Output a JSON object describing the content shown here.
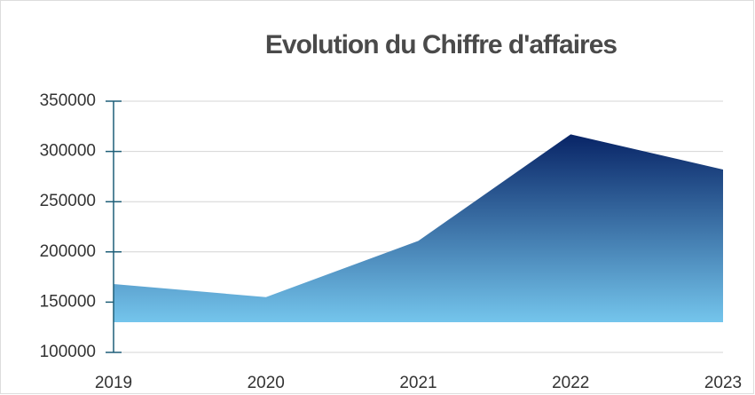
{
  "chart_data": {
    "type": "area",
    "title": "Evolution du Chiffre d'affaires",
    "x": [
      2019,
      2020,
      2021,
      2022,
      2023
    ],
    "values": [
      168000,
      155000,
      211000,
      317000,
      282000
    ],
    "baseline": 130000,
    "xlim": [
      2019,
      2023
    ],
    "xticks": [
      2019,
      2020,
      2021,
      2022,
      2023
    ],
    "ylim": [
      100000,
      350000
    ],
    "yticks": [
      100000,
      150000,
      200000,
      250000,
      300000,
      350000
    ],
    "grid": true,
    "color_top": "#082466",
    "color_bottom": "#74c5ec"
  }
}
